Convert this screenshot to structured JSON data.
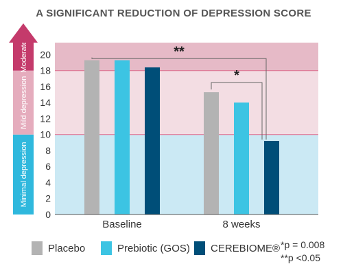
{
  "chart_data": {
    "type": "bar",
    "title": "A SIGNIFICANT REDUCTION OF DEPRESSION SCORE",
    "categories": [
      "Baseline",
      "8 weeks"
    ],
    "series": [
      {
        "name": "Placebo",
        "values": [
          19.3,
          15.3
        ],
        "color": "#b3b3b3"
      },
      {
        "name": "Prebiotic (GOS)",
        "values": [
          19.3,
          14.0
        ],
        "color": "#3cc4e3"
      },
      {
        "name": "CEREBIOME®",
        "values": [
          18.4,
          9.2
        ],
        "color": "#004e78"
      }
    ],
    "ylim": [
      0,
      21.5
    ],
    "yticks": [
      "0",
      "2",
      "4",
      "6",
      "8",
      "10",
      "12",
      "14",
      "16",
      "18",
      "20"
    ],
    "bands": [
      {
        "label": "Minimal depression",
        "from": 0,
        "to": 10,
        "bg": "#cbe9f4",
        "arrow": "#2fb8dd"
      },
      {
        "label": "Mild depression",
        "from": 10,
        "to": 18,
        "bg": "#f3dde3",
        "arrow": "#e5acbd"
      },
      {
        "label": "Moderate",
        "from": 18,
        "to": 21.5,
        "bg": "#e6bac7",
        "arrow": "#c43a6b"
      }
    ],
    "significance": [
      {
        "label": "**",
        "from_series": 0,
        "to_series": 2,
        "level": "outer"
      },
      {
        "label": "*",
        "from_series": 0,
        "to_series": 2,
        "level": "inner"
      }
    ],
    "footnotes": [
      "*p = 0.008",
      "**p <0.05"
    ],
    "legend_position": "bottom",
    "grid": false
  }
}
